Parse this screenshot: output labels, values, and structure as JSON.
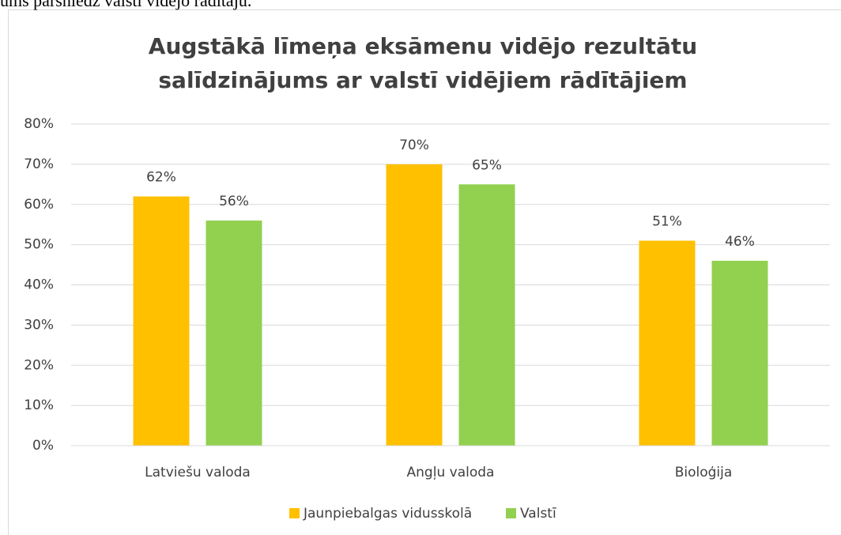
{
  "page_text": "ums pārsniedz valstī vidējo rādītāju.",
  "chart_data": {
    "type": "bar",
    "title": [
      "Augstākā līmeņa eksāmenu vidējo rezultātu",
      "salīdzinājums ar valstī vidējiem rādītājiem"
    ],
    "categories": [
      "Latviešu valoda",
      "Angļu valoda",
      "Bioloģija"
    ],
    "series": [
      {
        "name": "Jaunpiebalgas vidusskolā",
        "color": "#ffc000",
        "values": [
          62,
          70,
          51
        ],
        "value_labels": [
          "62%",
          "70%",
          "51%"
        ]
      },
      {
        "name": "Valstī",
        "color": "#92d050",
        "values": [
          56,
          65,
          46
        ],
        "value_labels": [
          "56%",
          "65%",
          "46%"
        ]
      }
    ],
    "ylim": [
      0,
      80
    ],
    "yticks": [
      {
        "value": 0,
        "label": "0%"
      },
      {
        "value": 10,
        "label": "10%"
      },
      {
        "value": 20,
        "label": "20%"
      },
      {
        "value": 30,
        "label": "30%"
      },
      {
        "value": 40,
        "label": "40%"
      },
      {
        "value": 50,
        "label": "50%"
      },
      {
        "value": 60,
        "label": "60%"
      },
      {
        "value": 70,
        "label": "70%"
      },
      {
        "value": 80,
        "label": "80%"
      }
    ],
    "grid": true,
    "legend": "bottom"
  }
}
